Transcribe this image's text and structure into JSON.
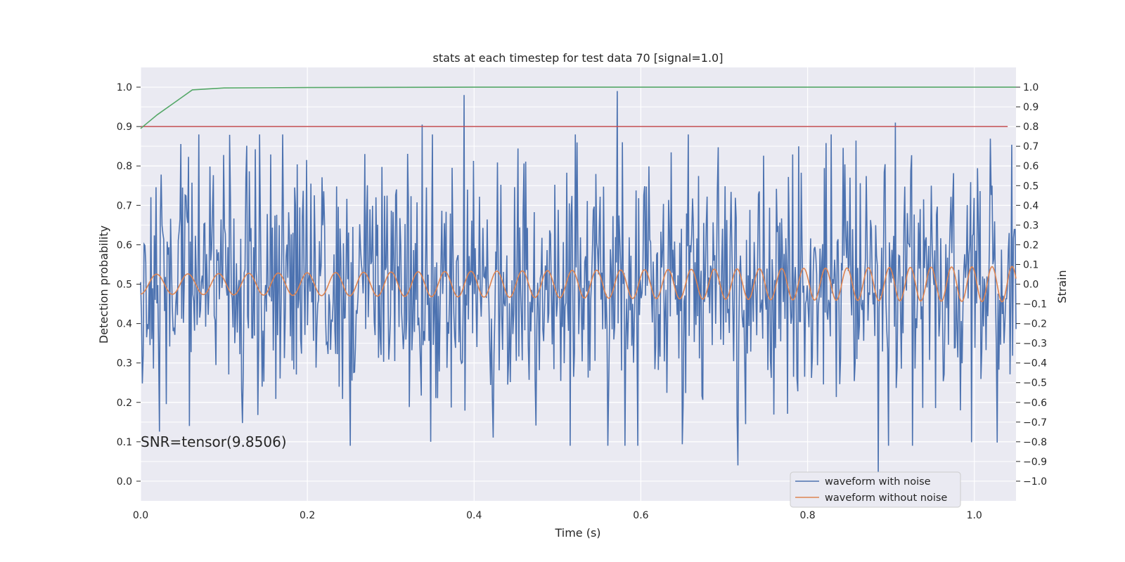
{
  "chart_data": {
    "type": "line",
    "title": "stats at each timestep for test data 70 [signal=1.0]",
    "xlabel": "Time (s)",
    "ylabel": "Detection probability",
    "ylabel_right": "Strain",
    "xlim": [
      0.0,
      1.05
    ],
    "ylim": [
      -0.05,
      1.05
    ],
    "ylim_right": [
      -1.1,
      1.1
    ],
    "x_ticks": [
      0.0,
      0.2,
      0.4,
      0.6,
      0.8,
      1.0
    ],
    "x_tick_labels": [
      "0.0",
      "0.2",
      "0.4",
      "0.6",
      "0.8",
      "1.0"
    ],
    "y_ticks": [
      0.0,
      0.1,
      0.2,
      0.3,
      0.4,
      0.5,
      0.6,
      0.7,
      0.8,
      0.9,
      1.0
    ],
    "y_tick_labels": [
      "0.0",
      "0.1",
      "0.2",
      "0.3",
      "0.4",
      "0.5",
      "0.6",
      "0.7",
      "0.8",
      "0.9",
      "1.0"
    ],
    "y_right_ticks": [
      -1.0,
      -0.9,
      -0.8,
      -0.7,
      -0.6,
      -0.5,
      -0.4,
      -0.3,
      -0.2,
      -0.1,
      0.0,
      0.1,
      0.2,
      0.3,
      0.4,
      0.5,
      0.6,
      0.7,
      0.8,
      0.9,
      1.0
    ],
    "y_right_tick_labels": [
      "−1.0",
      "−0.9",
      "−0.8",
      "−0.7",
      "−0.6",
      "−0.5",
      "−0.4",
      "−0.3",
      "−0.2",
      "−0.1",
      "0.0",
      "0.1",
      "0.2",
      "0.3",
      "0.4",
      "0.5",
      "0.6",
      "0.7",
      "0.8",
      "0.9",
      "1.0"
    ],
    "grid": true,
    "legend_position": "lower-right",
    "annotation": "SNR=tensor(9.8506)",
    "colors": {
      "background": "#eaeaf2",
      "grid": "#ffffff",
      "noisy": "#4c72b0",
      "clean": "#dd8452",
      "probability": "#55a868",
      "threshold": "#c44e52"
    },
    "series": [
      {
        "name": "waveform with noise",
        "axis": "right",
        "style": "noise",
        "mean": 0.0,
        "std": 0.3,
        "samples": 1024,
        "annotated_peaks": [
          [
            0.338,
            0.81
          ],
          [
            0.388,
            0.96
          ],
          [
            0.572,
            0.98
          ],
          [
            0.905,
            0.82
          ],
          [
            0.716,
            -0.92
          ],
          [
            0.885,
            -0.96
          ],
          [
            0.348,
            -0.8
          ],
          [
            0.058,
            -0.72
          ]
        ]
      },
      {
        "name": "waveform without noise",
        "axis": "right",
        "style": "chirp",
        "amplitude_start": 0.05,
        "amplitude_end": 0.09,
        "frequency_start": 26,
        "frequency_end": 42
      },
      {
        "axis": "left",
        "style": "line",
        "x": [
          0.0,
          0.02,
          0.04,
          0.062,
          0.1,
          0.2,
          0.4,
          0.6,
          0.8,
          1.05
        ],
        "y": [
          0.895,
          0.93,
          0.96,
          0.993,
          0.998,
          0.999,
          1.0,
          1.0,
          1.0,
          1.0
        ]
      },
      {
        "axis": "left",
        "style": "line",
        "x": [
          0.0,
          1.04
        ],
        "y": [
          0.9,
          0.9
        ]
      }
    ]
  }
}
